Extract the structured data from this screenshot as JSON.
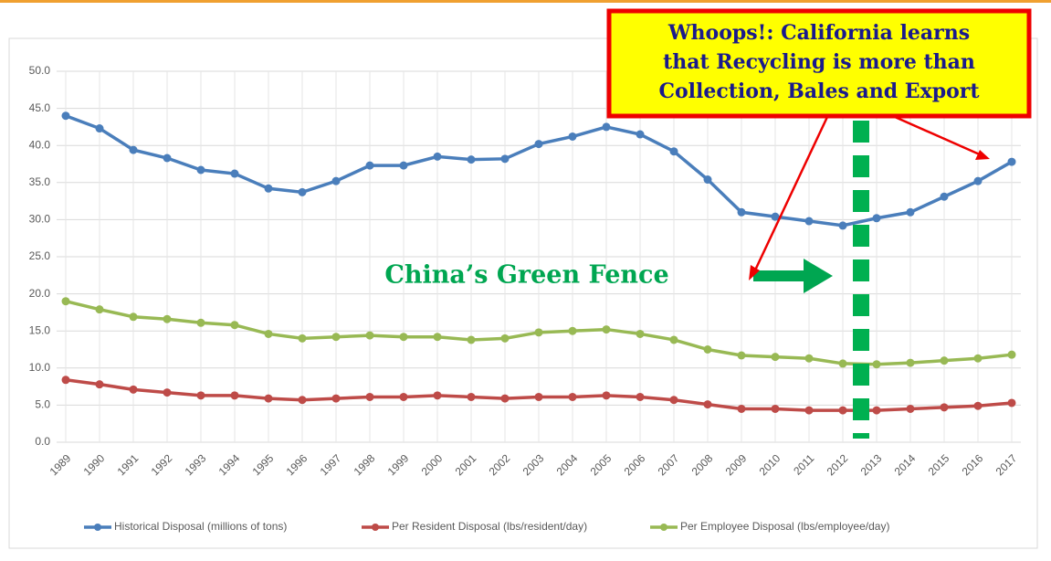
{
  "chart_data": {
    "type": "line",
    "categories": [
      "1989",
      "1990",
      "1991",
      "1992",
      "1993",
      "1994",
      "1995",
      "1996",
      "1997",
      "1998",
      "1999",
      "2000",
      "2001",
      "2002",
      "2003",
      "2004",
      "2005",
      "2006",
      "2007",
      "2008",
      "2009",
      "2010",
      "2011",
      "2012",
      "2013",
      "2014",
      "2015",
      "2016",
      "2017"
    ],
    "series": [
      {
        "name": "Historical Disposal (millions of tons)",
        "color": "#4a7ebb",
        "values": [
          44.0,
          42.3,
          39.4,
          38.3,
          36.7,
          36.2,
          34.2,
          33.7,
          35.2,
          37.3,
          37.3,
          38.5,
          38.1,
          38.2,
          40.2,
          41.2,
          42.5,
          41.5,
          39.2,
          35.4,
          31.0,
          30.4,
          29.8,
          29.2,
          30.2,
          31.0,
          33.1,
          35.2,
          37.8
        ]
      },
      {
        "name": "Per Resident Disposal (lbs/resident/day)",
        "color": "#be4b48",
        "values": [
          8.4,
          7.8,
          7.1,
          6.7,
          6.3,
          6.3,
          5.9,
          5.7,
          5.9,
          6.1,
          6.1,
          6.3,
          6.1,
          5.9,
          6.1,
          6.1,
          6.3,
          6.1,
          5.7,
          5.1,
          4.5,
          4.5,
          4.3,
          4.3,
          4.3,
          4.5,
          4.7,
          4.9,
          5.3
        ]
      },
      {
        "name": "Per Employee Disposal (lbs/employee/day)",
        "color": "#98b954",
        "values": [
          19.0,
          17.9,
          16.9,
          16.6,
          16.1,
          15.8,
          14.6,
          14.0,
          14.2,
          14.4,
          14.2,
          14.2,
          13.8,
          14.0,
          14.8,
          15.0,
          15.2,
          14.6,
          13.8,
          12.5,
          11.7,
          11.5,
          11.3,
          10.6,
          10.5,
          10.7,
          11.0,
          11.3,
          11.8
        ]
      }
    ],
    "ylim": [
      0,
      50
    ],
    "yticks": [
      {
        "value": 0,
        "label": "0.0"
      },
      {
        "value": 5,
        "label": "5.0"
      },
      {
        "value": 10,
        "label": "10.0"
      },
      {
        "value": 15,
        "label": "15.0"
      },
      {
        "value": 20,
        "label": "20.0"
      },
      {
        "value": 25,
        "label": "25.0"
      },
      {
        "value": 30,
        "label": "30.0"
      },
      {
        "value": 35,
        "label": "35.0"
      },
      {
        "value": 40,
        "label": "40.0"
      },
      {
        "value": 45,
        "label": "45.0"
      },
      {
        "value": 50,
        "label": "50.0"
      }
    ],
    "grid": true,
    "legend": "bottom",
    "callout": [
      "Whoops!: California learns",
      "that Recycling is more than",
      "Collection, Bales and Export"
    ],
    "annotation": "China’s Green Fence"
  }
}
